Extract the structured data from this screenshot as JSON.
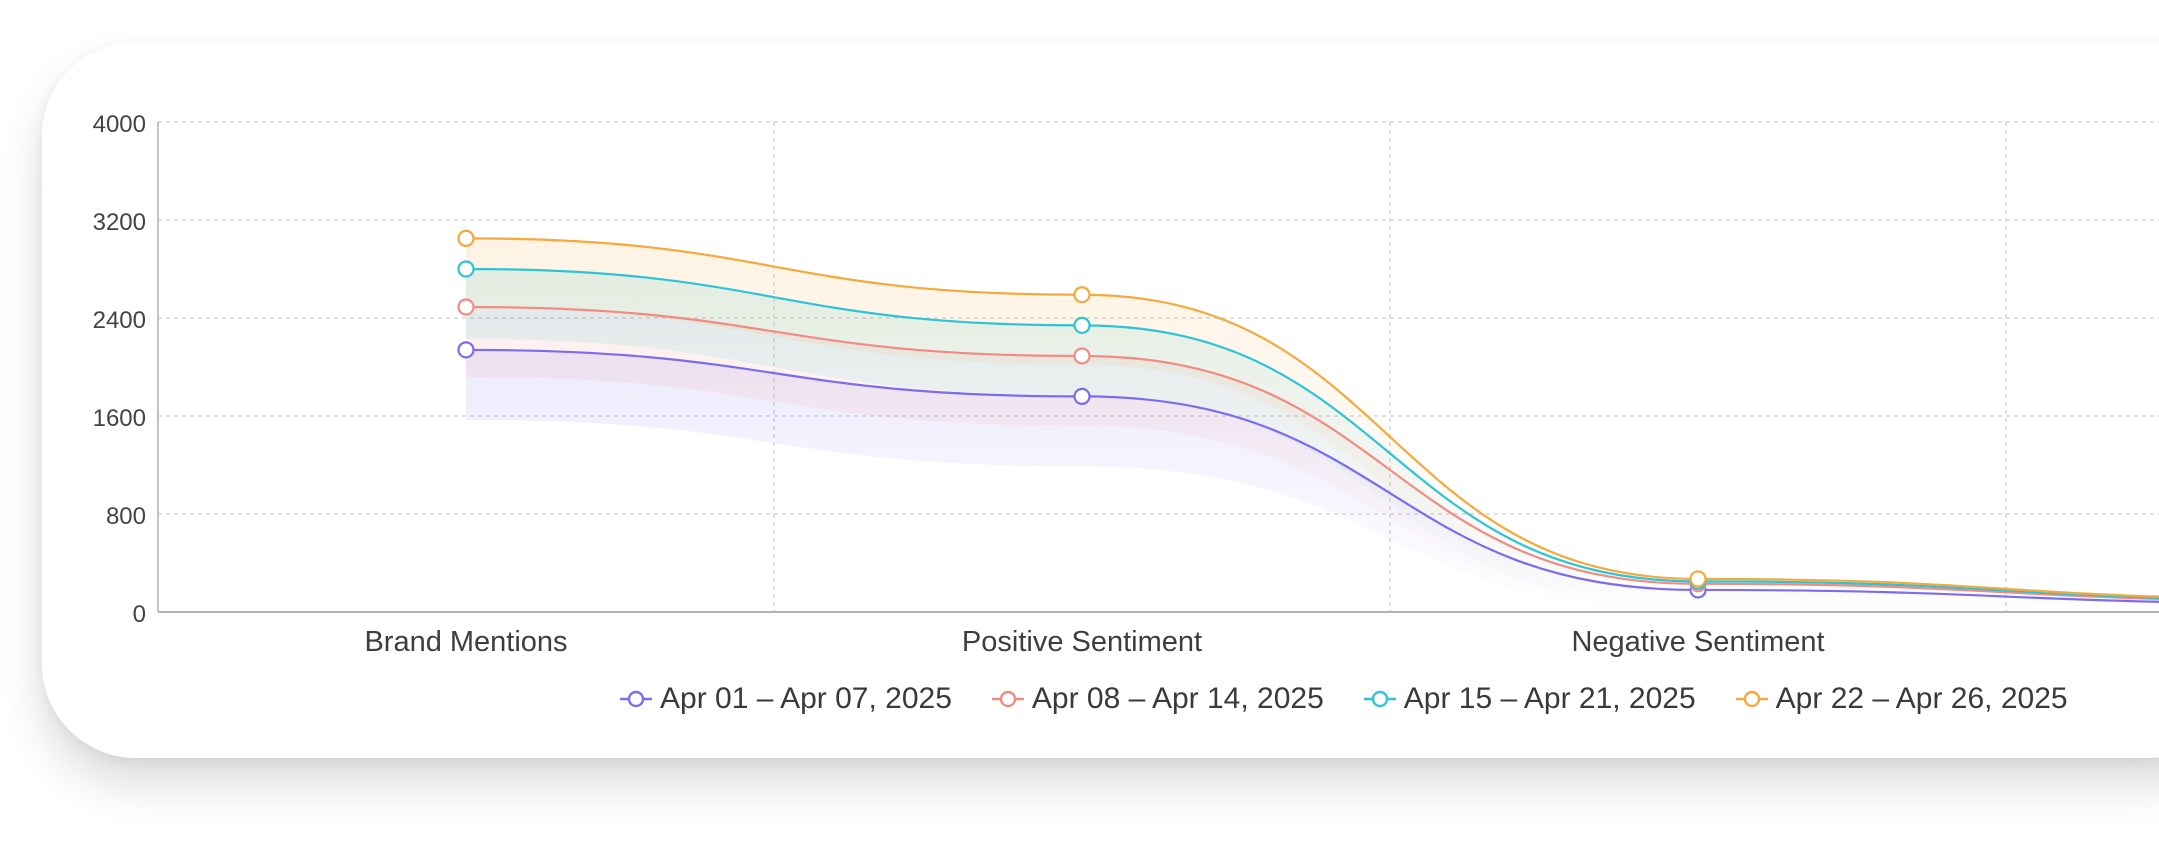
{
  "chart_data": {
    "type": "line",
    "categories": [
      "Brand Mentions",
      "Positive Sentiment",
      "Negative Sentiment"
    ],
    "ylim": [
      0,
      4000
    ],
    "yticks": [
      0,
      800,
      1600,
      2400,
      3200,
      4000
    ],
    "ytick_labels": [
      "0",
      "800",
      "1600",
      "2400",
      "3200",
      "4000"
    ],
    "grid": true,
    "legend_position": "bottom",
    "series": [
      {
        "name": "Apr 01 – Apr 07, 2025",
        "color": "#7b6cf0",
        "values": [
          2140,
          1760,
          180
        ]
      },
      {
        "name": "Apr 08 – Apr 14, 2025",
        "color": "#f28b82",
        "values": [
          2490,
          2090,
          230
        ]
      },
      {
        "name": "Apr 15 – Apr 21, 2025",
        "color": "#2ec4d6",
        "values": [
          2800,
          2340,
          250
        ]
      },
      {
        "name": "Apr 22 – Apr 26, 2025",
        "color": "#f5a93b",
        "values": [
          3050,
          2590,
          270
        ]
      }
    ]
  }
}
